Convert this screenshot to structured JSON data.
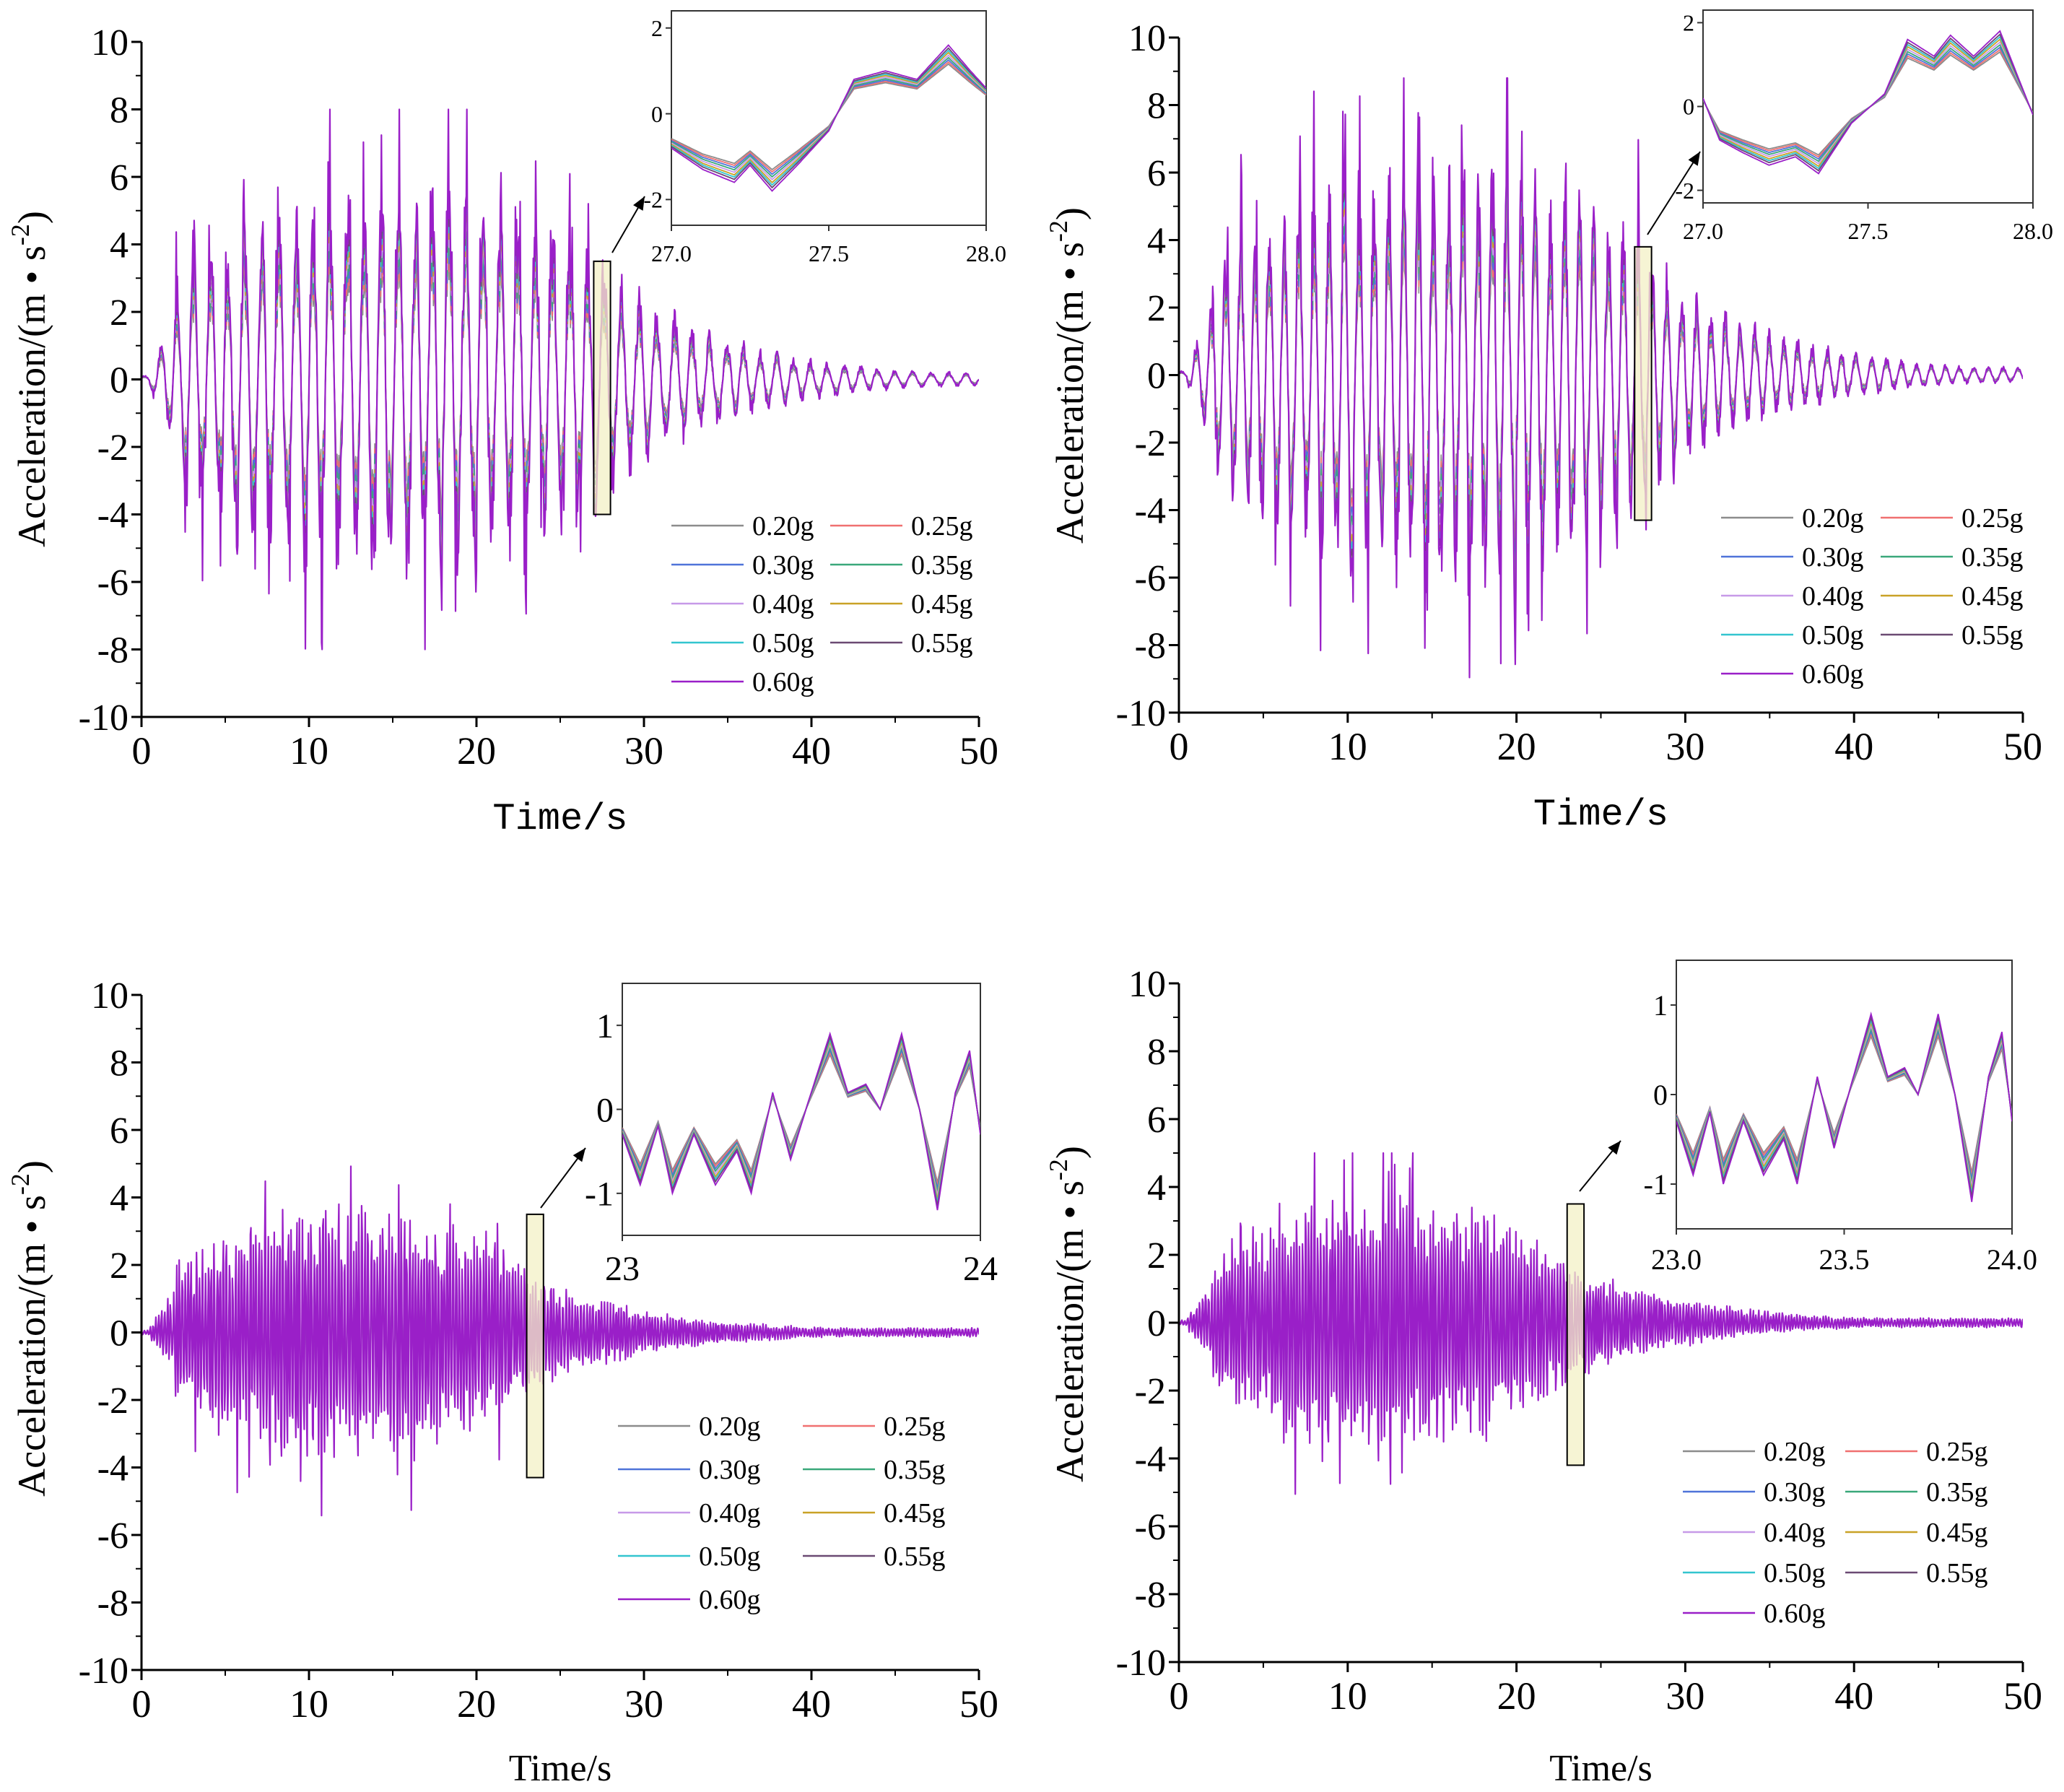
{
  "chart_data": [
    {
      "type": "line",
      "panel": "top-left",
      "ylabel": "Acceleration/(m • s^-2)",
      "ylabel_base": "Acceleration/(m • s",
      "ylabel_sup": "-2",
      "ylabel_close": ")",
      "xlabel": "Time/s",
      "xlim": [
        0,
        50
      ],
      "ylim": [
        -10,
        10
      ],
      "xticks": [
        "0",
        "10",
        "20",
        "30",
        "40",
        "50"
      ],
      "yticks": [
        "-10",
        "-8",
        "-6",
        "-4",
        "-2",
        "0",
        "2",
        "4",
        "6",
        "8",
        "10"
      ],
      "signal": {
        "duration": 50,
        "strong_start": 2,
        "strong_end": 28,
        "peak": 8.0,
        "min": -8.0,
        "tail_end": 50,
        "dominant_period": 1.05,
        "seed": 11
      },
      "highlight": {
        "x0": 27.0,
        "x1": 28.0,
        "y0": -4.0,
        "y1": 3.5
      },
      "inset": {
        "xlim": [
          27.0,
          28.0
        ],
        "ylim": [
          -2.6,
          2.4
        ],
        "xticks": [
          "27.0",
          "27.5",
          "28.0"
        ],
        "yticks": [
          "-2",
          "0",
          "2"
        ],
        "xtick_values": [
          27.0,
          27.5,
          28.0
        ],
        "ytick_values": [
          -2,
          0,
          2
        ],
        "shape": [
          [
            27.0,
            -0.8
          ],
          [
            27.1,
            -1.3
          ],
          [
            27.2,
            -1.6
          ],
          [
            27.25,
            -1.2
          ],
          [
            27.32,
            -1.8
          ],
          [
            27.4,
            -1.2
          ],
          [
            27.5,
            -0.4
          ],
          [
            27.58,
            0.8
          ],
          [
            27.68,
            1.0
          ],
          [
            27.78,
            0.8
          ],
          [
            27.88,
            1.6
          ],
          [
            27.95,
            1.0
          ],
          [
            28.0,
            0.6
          ]
        ]
      },
      "legend_position": "lower-right"
    },
    {
      "type": "line",
      "panel": "top-right",
      "ylabel": "Acceleration/(m • s^-2)",
      "ylabel_base": "Acceleration/(m • s",
      "ylabel_sup": "-2",
      "ylabel_close": ")",
      "xlabel": "Time/s",
      "xlim": [
        0,
        50
      ],
      "ylim": [
        -10,
        10
      ],
      "xticks": [
        "0",
        "10",
        "20",
        "30",
        "40",
        "50"
      ],
      "yticks": [
        "-10",
        "-8",
        "-6",
        "-4",
        "-2",
        "0",
        "2",
        "4",
        "6",
        "8",
        "10"
      ],
      "signal": {
        "duration": 50,
        "strong_start": 2,
        "strong_end": 28,
        "peak": 8.8,
        "min": -9.0,
        "tail_end": 50,
        "dominant_period": 0.9,
        "seed": 23
      },
      "highlight": {
        "x0": 27.0,
        "x1": 28.0,
        "y0": -4.3,
        "y1": 3.8
      },
      "inset": {
        "xlim": [
          27.0,
          28.0
        ],
        "ylim": [
          -2.3,
          2.3
        ],
        "xticks": [
          "27.0",
          "27.5",
          "28.0"
        ],
        "yticks": [
          "-2",
          "0",
          "2"
        ],
        "xtick_values": [
          27.0,
          27.5,
          28.0
        ],
        "ytick_values": [
          -2,
          0,
          2
        ],
        "shape": [
          [
            27.0,
            0.2
          ],
          [
            27.05,
            -0.8
          ],
          [
            27.12,
            -1.1
          ],
          [
            27.2,
            -1.4
          ],
          [
            27.28,
            -1.2
          ],
          [
            27.35,
            -1.6
          ],
          [
            27.45,
            -0.4
          ],
          [
            27.55,
            0.3
          ],
          [
            27.62,
            1.6
          ],
          [
            27.7,
            1.2
          ],
          [
            27.75,
            1.7
          ],
          [
            27.82,
            1.2
          ],
          [
            27.9,
            1.8
          ],
          [
            27.96,
            0.6
          ],
          [
            28.0,
            -0.2
          ]
        ]
      },
      "legend_position": "lower-right"
    },
    {
      "type": "line",
      "panel": "bottom-left",
      "ylabel": "Acceleration/(m • s^-2)",
      "ylabel_base": "Acceleration/(m • s",
      "ylabel_sup": "-2",
      "ylabel_close": ")",
      "xlabel": "Time/s",
      "xlim": [
        0,
        50
      ],
      "ylim": [
        -10,
        10
      ],
      "xticks": [
        "0",
        "10",
        "20",
        "30",
        "40",
        "50"
      ],
      "yticks": [
        "-10",
        "-8",
        "-6",
        "-4",
        "-2",
        "0",
        "2",
        "4",
        "6",
        "8",
        "10"
      ],
      "signal": {
        "duration": 50,
        "strong_start": 2,
        "strong_end": 22,
        "peak": 5.0,
        "min": -6.0,
        "tail_end": 50,
        "dominant_period": 0.18,
        "seed": 37
      },
      "highlight": {
        "x0": 23.0,
        "x1": 24.0,
        "y0": -4.3,
        "y1": 3.5
      },
      "inset": {
        "xlim": [
          23.0,
          24.0
        ],
        "ylim": [
          -1.5,
          1.5
        ],
        "xticks": [
          "23",
          "24"
        ],
        "yticks": [
          "-1",
          "0",
          "1"
        ],
        "xtick_values": [
          23.0,
          24.0
        ],
        "ytick_values": [
          -1,
          0,
          1
        ],
        "shape": [
          [
            23.0,
            -0.3
          ],
          [
            23.05,
            -0.9
          ],
          [
            23.1,
            -0.2
          ],
          [
            23.14,
            -1.0
          ],
          [
            23.2,
            -0.3
          ],
          [
            23.26,
            -0.9
          ],
          [
            23.32,
            -0.5
          ],
          [
            23.36,
            -1.0
          ],
          [
            23.42,
            0.2
          ],
          [
            23.47,
            -0.6
          ],
          [
            23.52,
            0.1
          ],
          [
            23.58,
            0.9
          ],
          [
            23.63,
            0.2
          ],
          [
            23.68,
            0.3
          ],
          [
            23.72,
            0.0
          ],
          [
            23.78,
            0.9
          ],
          [
            23.83,
            0.0
          ],
          [
            23.88,
            -1.2
          ],
          [
            23.93,
            0.2
          ],
          [
            23.97,
            0.7
          ],
          [
            24.0,
            -0.3
          ]
        ]
      },
      "legend_position": "lower-right"
    },
    {
      "type": "line",
      "panel": "bottom-right",
      "ylabel": "Acceleration/(m • s^-2)",
      "ylabel_base": "Acceleration/(m • s",
      "ylabel_sup": "-2",
      "ylabel_close": ")",
      "xlabel": "Time/s",
      "xlim": [
        0,
        50
      ],
      "ylim": [
        -10,
        10
      ],
      "xticks": [
        "0",
        "10",
        "20",
        "30",
        "40",
        "50"
      ],
      "yticks": [
        "-10",
        "-8",
        "-6",
        "-4",
        "-2",
        "0",
        "2",
        "4",
        "6",
        "8",
        "10"
      ],
      "signal": {
        "duration": 50,
        "strong_start": 2,
        "strong_end": 22,
        "peak": 5.0,
        "min": -6.0,
        "tail_end": 50,
        "dominant_period": 0.18,
        "seed": 41
      },
      "highlight": {
        "x0": 23.0,
        "x1": 24.0,
        "y0": -4.2,
        "y1": 3.5
      },
      "inset": {
        "xlim": [
          23.0,
          24.0
        ],
        "ylim": [
          -1.5,
          1.5
        ],
        "xticks": [
          "23.0",
          "23.5",
          "24.0"
        ],
        "yticks": [
          "-1",
          "0",
          "1"
        ],
        "xtick_values": [
          23.0,
          23.5,
          24.0
        ],
        "ytick_values": [
          -1,
          0,
          1
        ],
        "shape": [
          [
            23.0,
            -0.3
          ],
          [
            23.05,
            -0.9
          ],
          [
            23.1,
            -0.2
          ],
          [
            23.14,
            -1.0
          ],
          [
            23.2,
            -0.3
          ],
          [
            23.26,
            -0.9
          ],
          [
            23.32,
            -0.5
          ],
          [
            23.36,
            -1.0
          ],
          [
            23.42,
            0.2
          ],
          [
            23.47,
            -0.6
          ],
          [
            23.52,
            0.1
          ],
          [
            23.58,
            0.9
          ],
          [
            23.63,
            0.2
          ],
          [
            23.68,
            0.3
          ],
          [
            23.72,
            0.0
          ],
          [
            23.78,
            0.9
          ],
          [
            23.83,
            0.0
          ],
          [
            23.88,
            -1.2
          ],
          [
            23.93,
            0.2
          ],
          [
            23.97,
            0.7
          ],
          [
            24.0,
            -0.3
          ]
        ]
      },
      "legend_position": "lower-right"
    }
  ],
  "series": [
    {
      "name": "0.20g",
      "color": "#8c8c8c",
      "scale": 0.62
    },
    {
      "name": "0.25g",
      "color": "#f07070",
      "scale": 0.67
    },
    {
      "name": "0.30g",
      "color": "#4f73d9",
      "scale": 0.72
    },
    {
      "name": "0.35g",
      "color": "#3aa87a",
      "scale": 0.77
    },
    {
      "name": "0.40g",
      "color": "#c79ae8",
      "scale": 0.82
    },
    {
      "name": "0.45g",
      "color": "#c9a227",
      "scale": 0.87
    },
    {
      "name": "0.50g",
      "color": "#33c5cf",
      "scale": 0.91
    },
    {
      "name": "0.55g",
      "color": "#6b4a73",
      "scale": 0.95
    },
    {
      "name": "0.60g",
      "color": "#9a1fc8",
      "scale": 1.0
    }
  ],
  "colors": {
    "axis": "#000000",
    "highlight_fill": "#f3f0c6",
    "highlight_stroke": "#000000"
  }
}
